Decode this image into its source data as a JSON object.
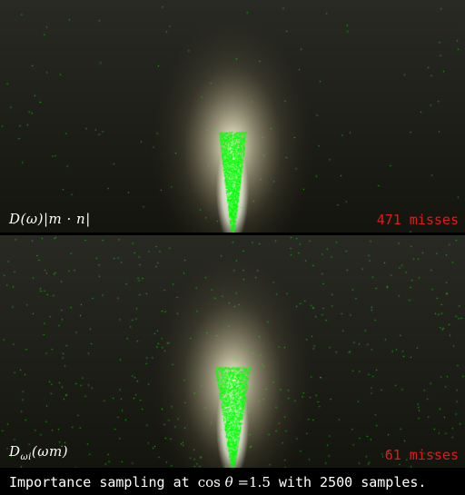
{
  "panels": [
    {
      "formula": "D(ω)|m · n|",
      "misses_label": "471 misses",
      "spread": 0.12,
      "scatter": 0.09
    },
    {
      "formula": "D",
      "formula_sub": "ωi",
      "formula_arg": "(ωm)",
      "misses_label": "61 misses",
      "spread": 0.16,
      "scatter": 0.4
    }
  ],
  "caption": {
    "prefix": "Importance sampling at ",
    "math_fn": "cos",
    "math_var": "θ",
    "math_rest": " =1.5",
    "suffix": " with 2500 samples."
  },
  "colors": {
    "background_top": "#2a2a24",
    "background_bottom": "#15150f",
    "glow": "#fff8dc",
    "sample": "#00ff00",
    "misses": "#e01a1a"
  }
}
